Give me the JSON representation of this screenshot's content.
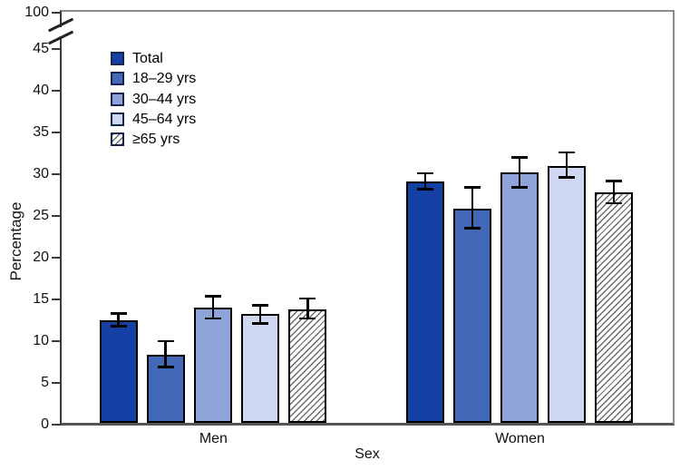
{
  "y_axis": {
    "label": "Percentage",
    "ticks": [
      0,
      5,
      10,
      15,
      20,
      25,
      30,
      35,
      40,
      45
    ],
    "break_top_tick": "100",
    "axis_break": true
  },
  "x_axis": {
    "label": "Sex",
    "categories": [
      "Men",
      "Women"
    ]
  },
  "colors": {
    "bar_border": "#000000",
    "axis_line": "#3a3a3a",
    "frame_line": "#8c8c8c",
    "hatch_line": "#6e6e6e",
    "background": "#ffffff"
  },
  "chart_data": {
    "type": "bar",
    "title": "",
    "xlabel": "Sex",
    "ylabel": "Percentage",
    "categories": [
      "Men",
      "Women"
    ],
    "series": [
      {
        "name": "Total",
        "color": "#1440a4",
        "hatch": false,
        "values": [
          12.3,
          28.9
        ],
        "ci_low": [
          11.6,
          28.0
        ],
        "ci_high": [
          13.1,
          29.9
        ]
      },
      {
        "name": "18–29 yrs",
        "color": "#4268b7",
        "hatch": false,
        "values": [
          8.2,
          25.7
        ],
        "ci_low": [
          6.7,
          23.3
        ],
        "ci_high": [
          9.8,
          28.2
        ]
      },
      {
        "name": "30–44 yrs",
        "color": "#8ea4d8",
        "hatch": false,
        "values": [
          13.8,
          30.0
        ],
        "ci_low": [
          12.5,
          28.2
        ],
        "ci_high": [
          15.2,
          31.8
        ]
      },
      {
        "name": "45–64 yrs",
        "color": "#ced8f0",
        "hatch": false,
        "values": [
          13.0,
          30.8
        ],
        "ci_low": [
          11.9,
          29.4
        ],
        "ci_high": [
          14.1,
          32.4
        ]
      },
      {
        "name": "≥65 yrs",
        "color": "#ffffff",
        "hatch": true,
        "values": [
          13.6,
          27.6
        ],
        "ci_low": [
          12.5,
          26.3
        ],
        "ci_high": [
          14.9,
          29.0
        ]
      }
    ],
    "ylim": [
      0,
      45
    ],
    "y_break_to": 100,
    "error_bars": true,
    "grid": false,
    "legend_position": "upper-left-inside"
  }
}
